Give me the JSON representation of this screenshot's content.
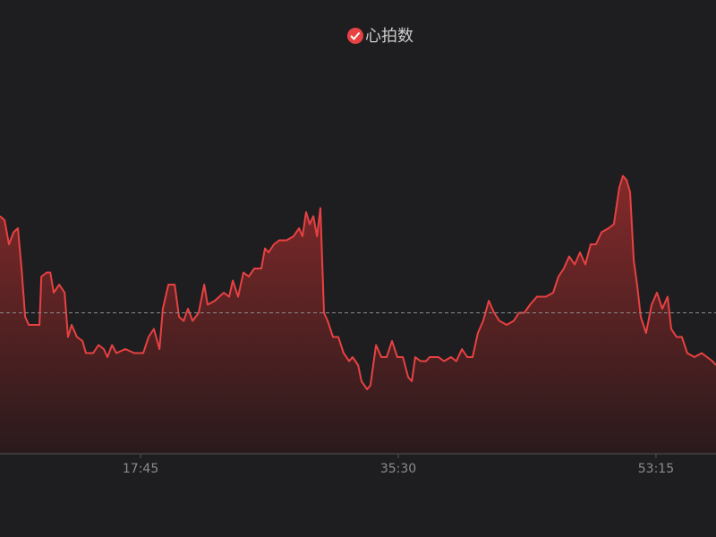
{
  "chart_data": {
    "type": "area",
    "x": [
      484,
      503,
      521,
      540,
      558,
      573,
      588,
      603,
      632,
      647,
      655,
      677,
      692,
      706,
      729,
      751,
      765,
      780,
      802,
      825,
      839,
      869,
      891,
      913,
      928,
      947,
      965,
      1002,
      1039,
      1076,
      1098,
      1120,
      1143,
      1157,
      1180,
      1206,
      1224,
      1243,
      1261,
      1280,
      1305,
      1328,
      1342,
      1372,
      1409,
      1431,
      1446,
      1468,
      1490,
      1512,
      1535,
      1564,
      1579,
      1594,
      1616,
      1638,
      1668,
      1697,
      1720,
      1734,
      1749,
      1764,
      1779,
      1794,
      1808,
      1823,
      1838,
      1860,
      1882,
      1904,
      1927,
      1941,
      1964,
      1978,
      2001,
      2015,
      2038,
      2060,
      2082,
      2104,
      2126,
      2149,
      2171,
      2186,
      2200,
      2222,
      2245,
      2259,
      2296,
      2319,
      2348,
      2370,
      2393,
      2415,
      2437,
      2459,
      2481,
      2504,
      2526,
      2548,
      2578,
      2607,
      2629,
      2651,
      2674,
      2703,
      2740,
      2770,
      2792,
      2814,
      2836,
      2859,
      2881,
      2903,
      2925,
      2947,
      2970,
      2999,
      3021,
      3043,
      3058,
      3073,
      3088,
      3103,
      3117,
      3132,
      3154,
      3177,
      3199,
      3221,
      3243,
      3258,
      3280,
      3302,
      3324,
      3354,
      3384,
      3406,
      3428,
      3443
    ],
    "series": [
      {
        "name": "心拍数",
        "color": "#e84142",
        "values": [
          99,
          98,
          92,
          95,
          96,
          86,
          74,
          72,
          72,
          72,
          84,
          85,
          85,
          80,
          82,
          80,
          69,
          72,
          69,
          68,
          65,
          65,
          67,
          66,
          64,
          67,
          65,
          66,
          65,
          65,
          69,
          71,
          66,
          76,
          82,
          82,
          74,
          73,
          76,
          73,
          75,
          82,
          77,
          78,
          80,
          79,
          83,
          79,
          85,
          84,
          86,
          86,
          91,
          90,
          92,
          93,
          93,
          94,
          96,
          94,
          100,
          97,
          99,
          94,
          101,
          75,
          73,
          69,
          69,
          65,
          63,
          64,
          62,
          58,
          56,
          57,
          67,
          64,
          64,
          68,
          64,
          64,
          59,
          58,
          64,
          63,
          63,
          64,
          64,
          63,
          64,
          63,
          66,
          64,
          64,
          70,
          73,
          78,
          75,
          73,
          72,
          73,
          75,
          75,
          77,
          79,
          79,
          80,
          84,
          86,
          89,
          87,
          90,
          87,
          92,
          92,
          95,
          96,
          97,
          106,
          109,
          108,
          105,
          88,
          82,
          74,
          70,
          77,
          80,
          76,
          79,
          71,
          69,
          69,
          65,
          64,
          65,
          64,
          63,
          62
        ]
      }
    ],
    "xlim": [
      484,
      3443
    ],
    "xticks": [
      {
        "value": 1065,
        "label": "17:45"
      },
      {
        "value": 2130,
        "label": "35:30"
      },
      {
        "value": 3195,
        "label": "53:15"
      }
    ],
    "ylim": [
      40,
      140
    ],
    "reference_line": 75
  }
}
